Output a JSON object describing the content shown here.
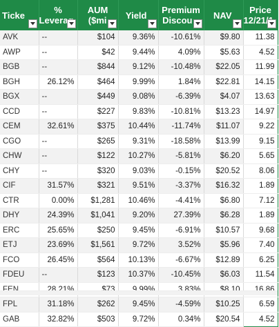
{
  "colors": {
    "header_bg": "#1f8a47",
    "header_text": "#ffffff",
    "band": "#f2f2f2",
    "grid": "#d9d9d9"
  },
  "headers": [
    {
      "line1": "",
      "line2": "Ticke"
    },
    {
      "line1": "%",
      "line2": "Leverag"
    },
    {
      "line1": "AUM",
      "line2": "($mi"
    },
    {
      "line1": "",
      "line2": "Yield"
    },
    {
      "line1": "Premium",
      "line2": "Discou"
    },
    {
      "line1": "",
      "line2": "NAV"
    },
    {
      "line1": "Price",
      "line2": "12/21/1"
    }
  ],
  "filter_icon": "dropdown-arrow-icon",
  "rows": [
    [
      "AVK",
      "--",
      "$104",
      "9.36%",
      "-10.61%",
      "$9.80",
      "11.38"
    ],
    [
      "AWP",
      "--",
      "$42",
      "9.44%",
      "4.09%",
      "$5.63",
      "4.52"
    ],
    [
      "BGB",
      "--",
      "$844",
      "9.12%",
      "-10.48%",
      "$22.05",
      "11.99"
    ],
    [
      "BGH",
      "26.12%",
      "$464",
      "9.99%",
      "1.84%",
      "$22.81",
      "14.15"
    ],
    [
      "BGX",
      "--",
      "$449",
      "9.08%",
      "-6.39%",
      "$4.07",
      "13.63"
    ],
    [
      "CCD",
      "--",
      "$227",
      "9.83%",
      "-10.81%",
      "$13.23",
      "14.97"
    ],
    [
      "CEM",
      "32.61%",
      "$375",
      "10.44%",
      "-11.74%",
      "$11.07",
      "9.22"
    ],
    [
      "CGO",
      "--",
      "$265",
      "9.31%",
      "-18.58%",
      "$13.99",
      "9.15"
    ],
    [
      "CHW",
      "--",
      "$122",
      "10.27%",
      "-5.81%",
      "$6.20",
      "5.65"
    ],
    [
      "CHY",
      "--",
      "$320",
      "9.03%",
      "-0.15%",
      "$20.52",
      "8.06"
    ],
    [
      "CIF",
      "31.57%",
      "$321",
      "9.51%",
      "-3.37%",
      "$16.32",
      "1.89"
    ],
    [
      "CTR",
      "0.00%",
      "$1,281",
      "10.46%",
      "-4.41%",
      "$6.80",
      "7.12"
    ],
    [
      "DHY",
      "24.39%",
      "$1,041",
      "9.20%",
      "27.39%",
      "$6.28",
      "1.89"
    ],
    [
      "ERC",
      "25.65%",
      "$250",
      "9.45%",
      "-6.91%",
      "$10.57",
      "9.68"
    ],
    [
      "ETJ",
      "23.69%",
      "$1,561",
      "9.72%",
      "3.52%",
      "$5.96",
      "7.40"
    ],
    [
      "FCO",
      "26.45%",
      "$564",
      "10.13%",
      "-6.67%",
      "$12.89",
      "6.25"
    ],
    [
      "FDEU",
      "--",
      "$123",
      "10.37%",
      "-10.45%",
      "$6.03",
      "11.54"
    ],
    [
      "FEN",
      "28.21%",
      "$73",
      "9.99%",
      "3.83%",
      "$8.10",
      "16.86"
    ],
    [
      "FPL",
      "31.18%",
      "$262",
      "9.45%",
      "-4.59%",
      "$10.25",
      "6.59"
    ],
    [
      "GAB",
      "32.82%",
      "$503",
      "9.72%",
      "0.34%",
      "$20.54",
      "4.52"
    ]
  ]
}
